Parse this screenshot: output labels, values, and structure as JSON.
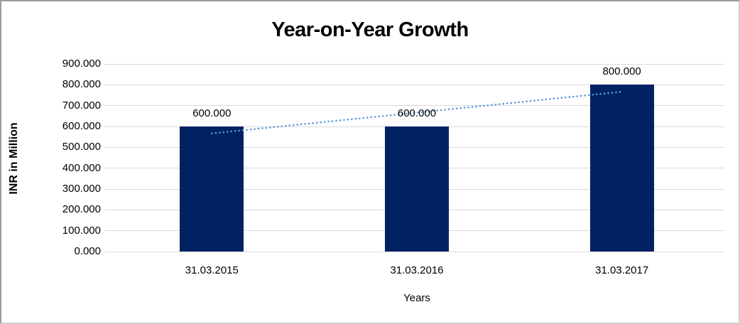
{
  "window": {
    "background": "#ffffff",
    "frame_border_dark": "#9a9a9a",
    "frame_border_light": "#cfcfcf"
  },
  "chart_data": {
    "type": "bar",
    "title": "Year-on-Year Growth",
    "xlabel": "Years",
    "ylabel": "INR in Million",
    "categories": [
      "31.03.2015",
      "31.03.2016",
      "31.03.2017"
    ],
    "values": [
      600,
      600,
      800
    ],
    "value_labels": [
      "600.000",
      "600.000",
      "800.000"
    ],
    "ylim": [
      0,
      900
    ],
    "ytick_step": 100,
    "ytick_labels": [
      "0.000",
      "100.000",
      "200.000",
      "300.000",
      "400.000",
      "500.000",
      "600.000",
      "700.000",
      "800.000",
      "900.000"
    ],
    "grid": true,
    "legend": false,
    "bar_color": "#002263",
    "gridline_color": "#d9d9d9",
    "trendline": {
      "style": "dotted",
      "color": "#5b9bd5",
      "start_value": 566.7,
      "end_value": 766.7
    }
  }
}
